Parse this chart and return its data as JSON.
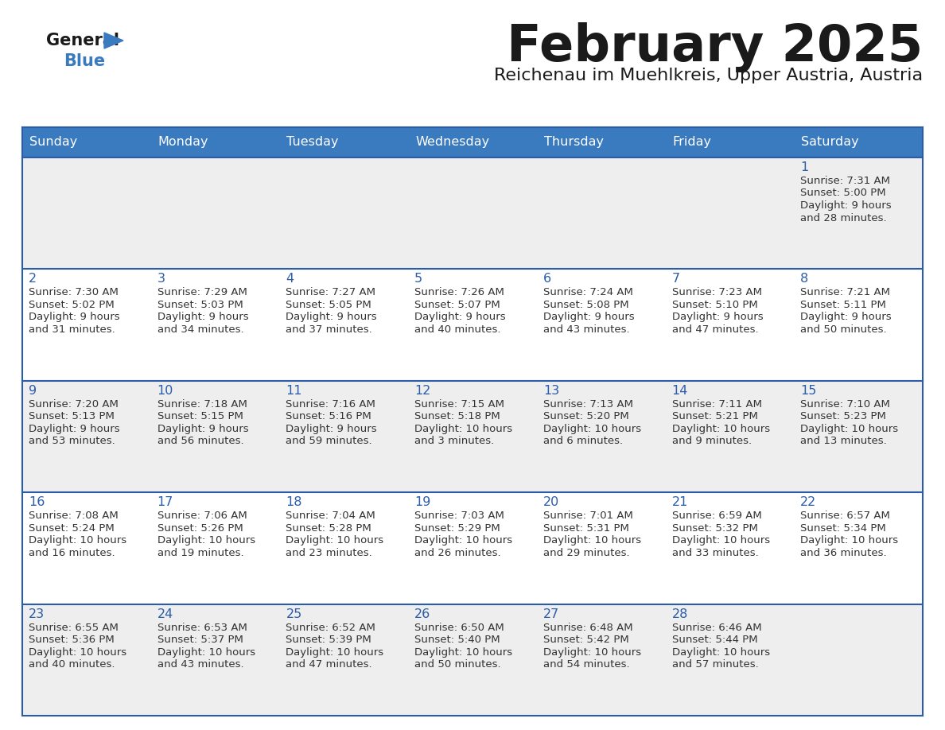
{
  "title": "February 2025",
  "subtitle": "Reichenau im Muehlkreis, Upper Austria, Austria",
  "header_color": "#3a7abf",
  "header_text_color": "#ffffff",
  "cell_bg_white": "#ffffff",
  "cell_bg_gray": "#eeeeee",
  "border_color": "#2a5ca8",
  "day_number_color": "#2a5ca8",
  "text_color": "#333333",
  "days_of_week": [
    "Sunday",
    "Monday",
    "Tuesday",
    "Wednesday",
    "Thursday",
    "Friday",
    "Saturday"
  ],
  "weeks": [
    [
      {
        "day": null,
        "sunrise": null,
        "sunset": null,
        "daylight": ""
      },
      {
        "day": null,
        "sunrise": null,
        "sunset": null,
        "daylight": ""
      },
      {
        "day": null,
        "sunrise": null,
        "sunset": null,
        "daylight": ""
      },
      {
        "day": null,
        "sunrise": null,
        "sunset": null,
        "daylight": ""
      },
      {
        "day": null,
        "sunrise": null,
        "sunset": null,
        "daylight": ""
      },
      {
        "day": null,
        "sunrise": null,
        "sunset": null,
        "daylight": ""
      },
      {
        "day": 1,
        "sunrise": "7:31 AM",
        "sunset": "5:00 PM",
        "daylight": "9 hours\nand 28 minutes."
      }
    ],
    [
      {
        "day": 2,
        "sunrise": "7:30 AM",
        "sunset": "5:02 PM",
        "daylight": "9 hours\nand 31 minutes."
      },
      {
        "day": 3,
        "sunrise": "7:29 AM",
        "sunset": "5:03 PM",
        "daylight": "9 hours\nand 34 minutes."
      },
      {
        "day": 4,
        "sunrise": "7:27 AM",
        "sunset": "5:05 PM",
        "daylight": "9 hours\nand 37 minutes."
      },
      {
        "day": 5,
        "sunrise": "7:26 AM",
        "sunset": "5:07 PM",
        "daylight": "9 hours\nand 40 minutes."
      },
      {
        "day": 6,
        "sunrise": "7:24 AM",
        "sunset": "5:08 PM",
        "daylight": "9 hours\nand 43 minutes."
      },
      {
        "day": 7,
        "sunrise": "7:23 AM",
        "sunset": "5:10 PM",
        "daylight": "9 hours\nand 47 minutes."
      },
      {
        "day": 8,
        "sunrise": "7:21 AM",
        "sunset": "5:11 PM",
        "daylight": "9 hours\nand 50 minutes."
      }
    ],
    [
      {
        "day": 9,
        "sunrise": "7:20 AM",
        "sunset": "5:13 PM",
        "daylight": "9 hours\nand 53 minutes."
      },
      {
        "day": 10,
        "sunrise": "7:18 AM",
        "sunset": "5:15 PM",
        "daylight": "9 hours\nand 56 minutes."
      },
      {
        "day": 11,
        "sunrise": "7:16 AM",
        "sunset": "5:16 PM",
        "daylight": "9 hours\nand 59 minutes."
      },
      {
        "day": 12,
        "sunrise": "7:15 AM",
        "sunset": "5:18 PM",
        "daylight": "10 hours\nand 3 minutes."
      },
      {
        "day": 13,
        "sunrise": "7:13 AM",
        "sunset": "5:20 PM",
        "daylight": "10 hours\nand 6 minutes."
      },
      {
        "day": 14,
        "sunrise": "7:11 AM",
        "sunset": "5:21 PM",
        "daylight": "10 hours\nand 9 minutes."
      },
      {
        "day": 15,
        "sunrise": "7:10 AM",
        "sunset": "5:23 PM",
        "daylight": "10 hours\nand 13 minutes."
      }
    ],
    [
      {
        "day": 16,
        "sunrise": "7:08 AM",
        "sunset": "5:24 PM",
        "daylight": "10 hours\nand 16 minutes."
      },
      {
        "day": 17,
        "sunrise": "7:06 AM",
        "sunset": "5:26 PM",
        "daylight": "10 hours\nand 19 minutes."
      },
      {
        "day": 18,
        "sunrise": "7:04 AM",
        "sunset": "5:28 PM",
        "daylight": "10 hours\nand 23 minutes."
      },
      {
        "day": 19,
        "sunrise": "7:03 AM",
        "sunset": "5:29 PM",
        "daylight": "10 hours\nand 26 minutes."
      },
      {
        "day": 20,
        "sunrise": "7:01 AM",
        "sunset": "5:31 PM",
        "daylight": "10 hours\nand 29 minutes."
      },
      {
        "day": 21,
        "sunrise": "6:59 AM",
        "sunset": "5:32 PM",
        "daylight": "10 hours\nand 33 minutes."
      },
      {
        "day": 22,
        "sunrise": "6:57 AM",
        "sunset": "5:34 PM",
        "daylight": "10 hours\nand 36 minutes."
      }
    ],
    [
      {
        "day": 23,
        "sunrise": "6:55 AM",
        "sunset": "5:36 PM",
        "daylight": "10 hours\nand 40 minutes."
      },
      {
        "day": 24,
        "sunrise": "6:53 AM",
        "sunset": "5:37 PM",
        "daylight": "10 hours\nand 43 minutes."
      },
      {
        "day": 25,
        "sunrise": "6:52 AM",
        "sunset": "5:39 PM",
        "daylight": "10 hours\nand 47 minutes."
      },
      {
        "day": 26,
        "sunrise": "6:50 AM",
        "sunset": "5:40 PM",
        "daylight": "10 hours\nand 50 minutes."
      },
      {
        "day": 27,
        "sunrise": "6:48 AM",
        "sunset": "5:42 PM",
        "daylight": "10 hours\nand 54 minutes."
      },
      {
        "day": 28,
        "sunrise": "6:46 AM",
        "sunset": "5:44 PM",
        "daylight": "10 hours\nand 57 minutes."
      },
      {
        "day": null,
        "sunrise": null,
        "sunset": null,
        "daylight": ""
      }
    ]
  ]
}
